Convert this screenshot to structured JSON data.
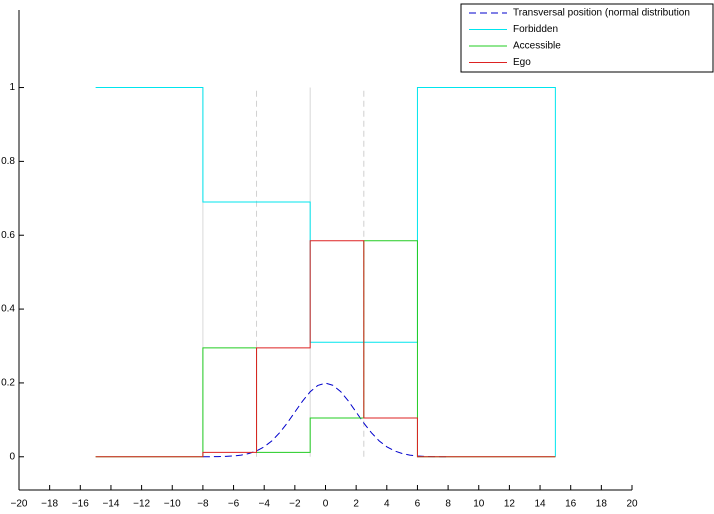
{
  "chart_data": {
    "type": "line",
    "xlim": [
      -20,
      20
    ],
    "ylim": [
      -0.09,
      1.21
    ],
    "xticks": [
      {
        "value": -20,
        "label": "−20"
      },
      {
        "value": -18,
        "label": "−18"
      },
      {
        "value": -16,
        "label": "−16"
      },
      {
        "value": -14,
        "label": "−14"
      },
      {
        "value": -12,
        "label": "−12"
      },
      {
        "value": -10,
        "label": "−10"
      },
      {
        "value": -8,
        "label": "−8"
      },
      {
        "value": -6,
        "label": "−6"
      },
      {
        "value": -4,
        "label": "−4"
      },
      {
        "value": -2,
        "label": "−2"
      },
      0,
      2,
      4,
      6,
      8,
      10,
      12,
      14,
      16,
      18,
      20
    ],
    "yticks": [
      0,
      0.2,
      0.4,
      0.6,
      0.8,
      1
    ],
    "legend": "northeast",
    "vlines_solid": [
      -8,
      -1
    ],
    "vlines_dashed": [
      -4.5,
      2.5
    ],
    "series": [
      {
        "name": "Transversal position (normal distribution",
        "color": "#0000cc",
        "dashed": true,
        "x": [
          -8,
          -7.5,
          -7,
          -6.5,
          -6,
          -5.5,
          -5,
          -4.5,
          -4,
          -3.5,
          -3,
          -2.5,
          -2,
          -1.5,
          -1,
          -0.5,
          0,
          0.5,
          1,
          1.5,
          2,
          2.5,
          3,
          3.5,
          4,
          4.5,
          5,
          5.5,
          6,
          6.5,
          7,
          7.5,
          8
        ],
        "values": [
          0.0001,
          0.0002,
          0.0004,
          0.001,
          0.0022,
          0.0045,
          0.0088,
          0.0159,
          0.027,
          0.0431,
          0.0648,
          0.0913,
          0.121,
          0.1506,
          0.176,
          0.1933,
          0.1995,
          0.1933,
          0.176,
          0.1506,
          0.121,
          0.0913,
          0.0648,
          0.0431,
          0.027,
          0.0159,
          0.0088,
          0.0045,
          0.0022,
          0.001,
          0.0004,
          0.0002,
          0.0001
        ]
      },
      {
        "name": "Forbidden",
        "color": "#00e5ee",
        "x": [
          -15,
          -8,
          -8,
          -1,
          -1,
          6,
          6,
          15,
          15
        ],
        "values": [
          1,
          1,
          0.69,
          0.69,
          0.31,
          0.31,
          1,
          1,
          0
        ]
      },
      {
        "name": "Accessible",
        "color": "#22cc22",
        "x": [
          -15,
          -8,
          -8,
          -4.5,
          -4.5,
          -1,
          -1,
          2.5,
          2.5,
          6,
          6,
          15
        ],
        "values": [
          0,
          0,
          0.295,
          0.295,
          0.012,
          0.012,
          0.105,
          0.105,
          0.585,
          0.585,
          0,
          0
        ]
      },
      {
        "name": "Ego",
        "color": "#dd2222",
        "x": [
          -15,
          -8,
          -8,
          -4.5,
          -4.5,
          -1,
          -1,
          2.5,
          2.5,
          6,
          6,
          15
        ],
        "values": [
          0,
          0,
          0.012,
          0.012,
          0.295,
          0.295,
          0.585,
          0.585,
          0.105,
          0.105,
          0,
          0
        ]
      }
    ]
  }
}
